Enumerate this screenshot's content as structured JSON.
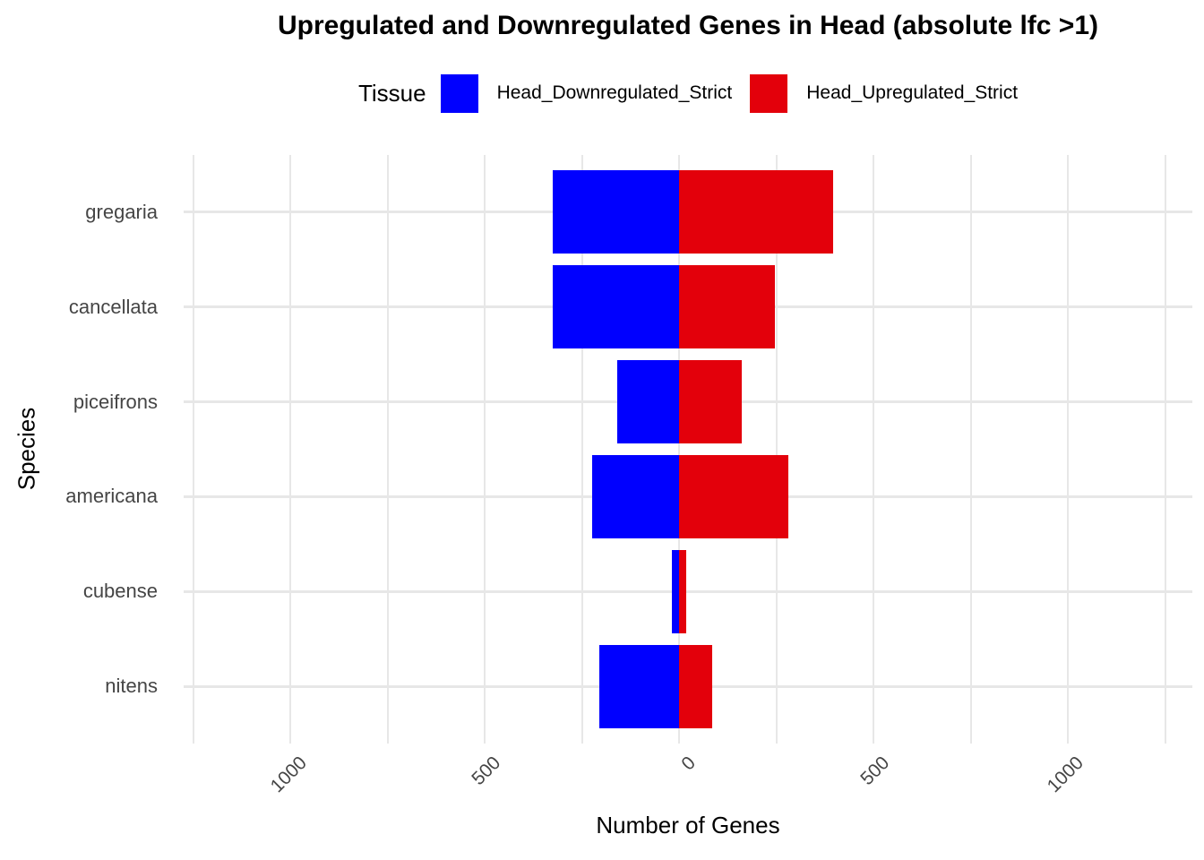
{
  "title": "Upregulated and Downregulated Genes in Head (absolute lfc >1)",
  "legend": {
    "title": "Tissue",
    "items": [
      {
        "label": "Head_Downregulated_Strict",
        "color": "#0000FF"
      },
      {
        "label": "Head_Upregulated_Strict",
        "color": "#E3000B"
      }
    ]
  },
  "chart_data": {
    "type": "bar",
    "variant": "horizontal-diverging",
    "title": "Upregulated and Downregulated Genes in Head (absolute lfc >1)",
    "xlabel": "Number of Genes",
    "ylabel": "Species",
    "categories": [
      "gregaria",
      "cancellata",
      "piceifrons",
      "americana",
      "cubense",
      "nitens"
    ],
    "series": [
      {
        "name": "Head_Downregulated_Strict",
        "side": "negative",
        "color": "#0000FF",
        "values": [
          325,
          325,
          160,
          225,
          18,
          205
        ]
      },
      {
        "name": "Head_Upregulated_Strict",
        "side": "positive",
        "color": "#E3000B",
        "values": [
          395,
          245,
          160,
          280,
          18,
          85
        ]
      }
    ],
    "x_tick_values": [
      -1000,
      -500,
      0,
      500,
      1000
    ],
    "x_tick_labels": [
      "1000",
      "500",
      "0",
      "500",
      "1000"
    ],
    "x_minor_tick_values": [
      -1250,
      -750,
      -250,
      250,
      750,
      1250
    ],
    "xlim": [
      -1275,
      1320
    ],
    "grid": true,
    "legend_position": "top",
    "colors": {
      "grid": "#E7E7E7",
      "axis_text": "#454545",
      "text": "#000000",
      "background": "#FFFFFF"
    }
  }
}
